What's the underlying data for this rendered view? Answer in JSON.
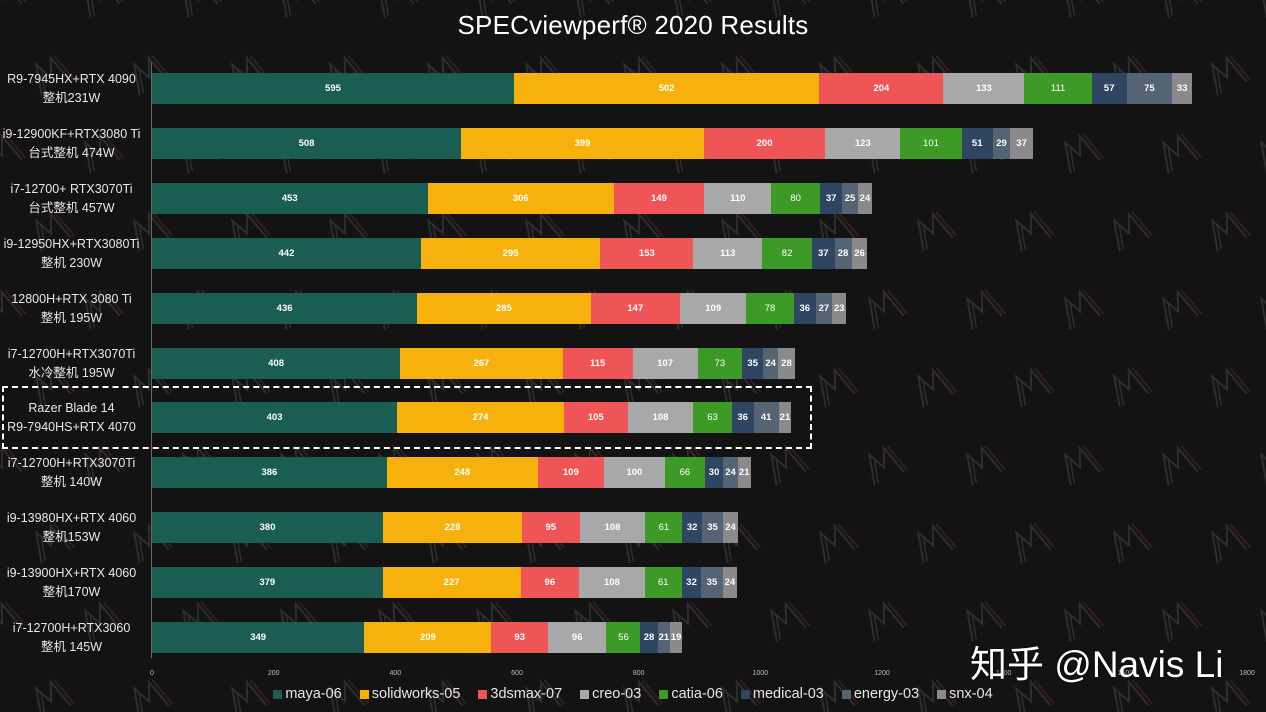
{
  "chart_data": {
    "type": "bar",
    "orientation": "horizontal",
    "stacked": true,
    "title": "SPECviewperf® 2020 Results",
    "xlabel": "",
    "ylabel": "",
    "xlim": [
      0,
      1800
    ],
    "xticks": [
      0,
      200,
      400,
      600,
      800,
      1000,
      1200,
      1400,
      1600,
      1800
    ],
    "grid": false,
    "legend_position": "bottom",
    "categories": [
      {
        "line1": "R9-7945HX+RTX 4090",
        "line2": "整机231W"
      },
      {
        "line1": "i9-12900KF+RTX3080 Ti",
        "line2": "台式整机 474W"
      },
      {
        "line1": "i7-12700+ RTX3070Ti",
        "line2": "台式整机 457W"
      },
      {
        "line1": "i9-12950HX+RTX3080Ti",
        "line2": "整机 230W"
      },
      {
        "line1": "12800H+RTX 3080 Ti",
        "line2": "整机 195W"
      },
      {
        "line1": "i7-12700H+RTX3070Ti",
        "line2": "水冷整机 195W"
      },
      {
        "line1": "Razer Blade 14",
        "line2": "R9-7940HS+RTX 4070"
      },
      {
        "line1": "i7-12700H+RTX3070Ti",
        "line2": "整机 140W"
      },
      {
        "line1": "i9-13980HX+RTX 4060",
        "line2": "整机153W"
      },
      {
        "line1": "i9-13900HX+RTX 4060",
        "line2": "整机170W"
      },
      {
        "line1": "i7-12700H+RTX3060",
        "line2": "整机 145W"
      }
    ],
    "highlighted_category_index": 6,
    "series": [
      {
        "name": "maya-06",
        "color": "#1a5e53",
        "values": [
          595,
          508,
          453,
          442,
          436,
          408,
          403,
          386,
          380,
          379,
          349
        ]
      },
      {
        "name": "solidworks-05",
        "color": "#f6b10c",
        "values": [
          502,
          399,
          306,
          295,
          285,
          267,
          274,
          248,
          228,
          227,
          209
        ]
      },
      {
        "name": "3dsmax-07",
        "color": "#ef5456",
        "values": [
          204,
          200,
          149,
          153,
          147,
          115,
          105,
          109,
          95,
          96,
          93
        ]
      },
      {
        "name": "creo-03",
        "color": "#a8a8a8",
        "values": [
          133,
          123,
          110,
          113,
          109,
          107,
          108,
          100,
          108,
          108,
          96
        ]
      },
      {
        "name": "catia-06",
        "color": "#3e9a27",
        "values": [
          111,
          101,
          80,
          82,
          78,
          73,
          63,
          66,
          61,
          61,
          56
        ]
      },
      {
        "name": "medical-03",
        "color": "#2f4663",
        "values": [
          57,
          51,
          37,
          37,
          36,
          35,
          36,
          30,
          32,
          32,
          28
        ]
      },
      {
        "name": "energy-03",
        "color": "#556474",
        "values": [
          75,
          29,
          25,
          28,
          27,
          24,
          41,
          24,
          35,
          35,
          21
        ]
      },
      {
        "name": "snx-04",
        "color": "#8a8a8a",
        "values": [
          33,
          37,
          24,
          26,
          23,
          28,
          21,
          21,
          24,
          24,
          19
        ]
      }
    ]
  },
  "watermark": "知乎 @Navis Li",
  "background_color": "#131313"
}
